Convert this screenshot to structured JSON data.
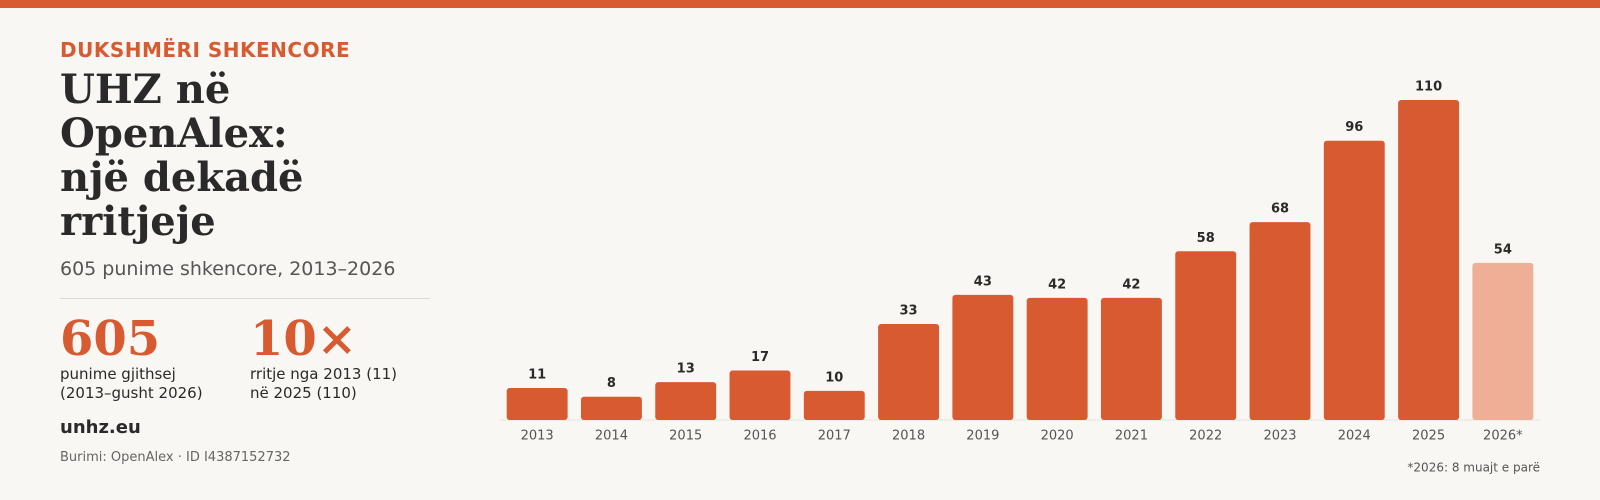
{
  "panel": {
    "kicker": "DUKSHMËRI SHKENCORE",
    "title": [
      "UHZ në OpenAlex:",
      "një dekadë rritjeje"
    ],
    "subtitle": "605 punime shkencore, 2013–2026",
    "stats": [
      {
        "value": 605,
        "label": [
          "punime gjithsej",
          "(2013–gusht 2026)"
        ]
      },
      {
        "value": "10×",
        "label": [
          "rritje nga 2013 (11)",
          "në 2025 (110)"
        ]
      }
    ],
    "site": "unhz.eu",
    "source": "Burimi: OpenAlex · ID I4387152732"
  },
  "chart_data": {
    "type": "bar",
    "categories": [
      "2013",
      "2014",
      "2015",
      "2016",
      "2017",
      "2018",
      "2019",
      "2020",
      "2021",
      "2022",
      "2023",
      "2024",
      "2025",
      "2026*"
    ],
    "values": [
      11,
      8,
      13,
      17,
      10,
      33,
      43,
      42,
      42,
      58,
      68,
      96,
      110,
      54
    ],
    "colors": [
      "#d75a30",
      "#d75a30",
      "#d75a30",
      "#d75a30",
      "#d75a30",
      "#d75a30",
      "#d75a30",
      "#d75a30",
      "#d75a30",
      "#d75a30",
      "#d75a30",
      "#d75a30",
      "#d75a30",
      "#efae96"
    ],
    "ylim": [
      0,
      110
    ],
    "note": "*2026: 8 muajt e parë"
  }
}
